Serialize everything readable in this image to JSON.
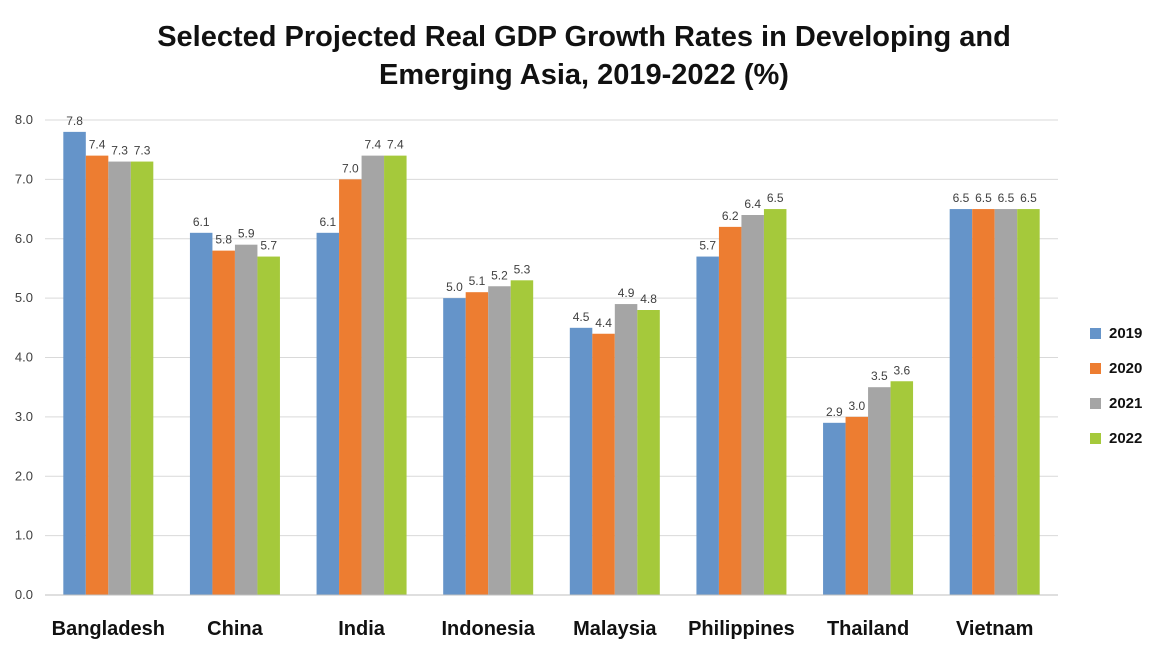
{
  "title_line1": "Selected Projected Real GDP Growth Rates in Developing and",
  "title_line2": "Emerging Asia, 2019-2022 (%)",
  "colors": [
    "#6594C9",
    "#ED7D31",
    "#A5A5A5",
    "#A5C93B"
  ],
  "chart_data": {
    "type": "bar",
    "title": "Selected Projected Real GDP Growth Rates in Developing and Emerging Asia, 2019-2022 (%)",
    "xlabel": "",
    "ylabel": "",
    "ylim": [
      0,
      8
    ],
    "yticks": [
      "0.0",
      "1.0",
      "2.0",
      "3.0",
      "4.0",
      "5.0",
      "6.0",
      "7.0",
      "8.0"
    ],
    "grid": true,
    "legend_position": "right",
    "categories": [
      "Bangladesh",
      "China",
      "India",
      "Indonesia",
      "Malaysia",
      "Philippines",
      "Thailand",
      "Vietnam"
    ],
    "series": [
      {
        "name": "2019",
        "values": [
          7.8,
          6.1,
          6.1,
          5.0,
          4.5,
          5.7,
          2.9,
          6.5
        ]
      },
      {
        "name": "2020",
        "values": [
          7.4,
          5.8,
          7.0,
          5.1,
          4.4,
          6.2,
          3.0,
          6.5
        ]
      },
      {
        "name": "2021",
        "values": [
          7.3,
          5.9,
          7.4,
          5.2,
          4.9,
          6.4,
          3.5,
          6.5
        ]
      },
      {
        "name": "2022",
        "values": [
          7.3,
          5.7,
          7.4,
          5.3,
          4.8,
          6.5,
          3.6,
          6.5
        ]
      }
    ]
  }
}
